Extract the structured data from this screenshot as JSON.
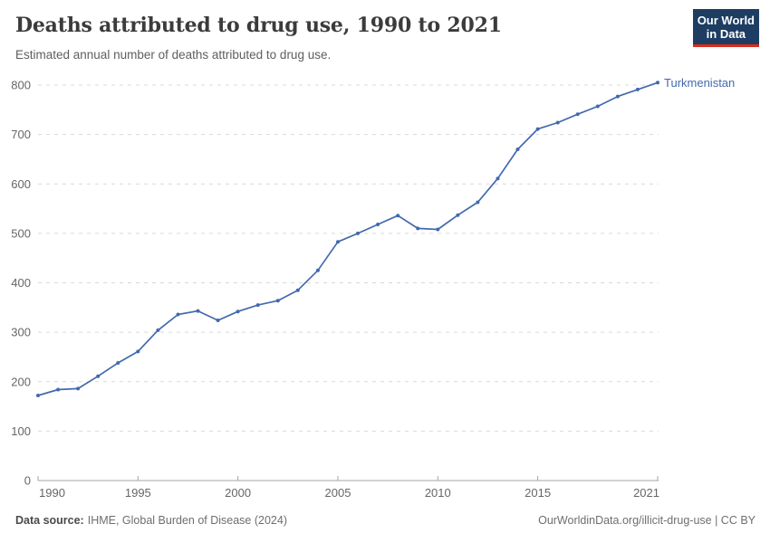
{
  "header": {
    "title": "Deaths attributed to drug use, 1990 to 2021",
    "subtitle": "Estimated annual number of deaths attributed to drug use.",
    "logo": {
      "line1": "Our World",
      "line2": "in Data"
    }
  },
  "chart_data": {
    "type": "line",
    "title": "Deaths attributed to drug use, 1990 to 2021",
    "xlabel": "",
    "ylabel": "",
    "x": [
      1990,
      1991,
      1992,
      1993,
      1994,
      1995,
      1996,
      1997,
      1998,
      1999,
      2000,
      2001,
      2002,
      2003,
      2004,
      2005,
      2006,
      2007,
      2008,
      2009,
      2010,
      2011,
      2012,
      2013,
      2014,
      2015,
      2016,
      2017,
      2018,
      2019,
      2020,
      2021
    ],
    "series": [
      {
        "name": "Turkmenistan",
        "color": "#4269ae",
        "values": [
          172,
          184,
          186,
          211,
          238,
          261,
          304,
          336,
          343,
          324,
          342,
          355,
          364,
          385,
          425,
          483,
          500,
          518,
          536,
          510,
          508,
          537,
          563,
          611,
          670,
          711,
          724,
          741,
          757,
          777,
          791,
          805
        ]
      }
    ],
    "ylim": [
      0,
      800
    ],
    "yticks": [
      0,
      100,
      200,
      300,
      400,
      500,
      600,
      700,
      800
    ],
    "xticks": [
      1990,
      1995,
      2000,
      2005,
      2010,
      2015,
      2021
    ],
    "grid": "horizontal-dashed",
    "legend_position": "end-of-line-label"
  },
  "footer": {
    "source_label": "Data source:",
    "source_text": "IHME, Global Burden of Disease (2024)",
    "credit": "OurWorldinData.org/illicit-drug-use | CC BY"
  },
  "colors": {
    "line": "#4269ae",
    "grid": "#d9d9d9",
    "axis": "#a6a6a6",
    "tick_text": "#666666",
    "logo_bg": "#1d3d63",
    "logo_red": "#dc2b1c"
  }
}
